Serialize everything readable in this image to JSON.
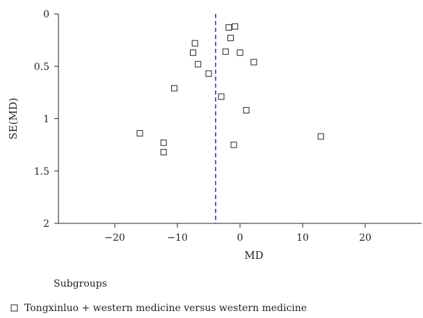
{
  "chart_data": {
    "type": "scatter",
    "title": "",
    "xlabel": "MD",
    "ylabel": "SE(MD)",
    "xlim": [
      -29,
      29
    ],
    "ylim": [
      0,
      2
    ],
    "y_inverted": true,
    "x_ticks": [
      -20,
      -10,
      0,
      10,
      20
    ],
    "x_tick_labels": [
      "−20",
      "−10",
      "0",
      "10",
      "20"
    ],
    "y_ticks": [
      0,
      0.5,
      1,
      1.5,
      2
    ],
    "y_tick_labels": [
      "0",
      "0.5",
      "1",
      "1.5",
      "2"
    ],
    "grid": false,
    "reference_line": {
      "x": -3.9,
      "style": "dashed",
      "color": "#2b3a9b"
    },
    "marker": {
      "shape": "open-square",
      "color": "#222222"
    },
    "points": [
      {
        "x": -1.8,
        "y": 0.13
      },
      {
        "x": -0.8,
        "y": 0.12
      },
      {
        "x": -1.5,
        "y": 0.23
      },
      {
        "x": -7.2,
        "y": 0.28
      },
      {
        "x": -7.5,
        "y": 0.37
      },
      {
        "x": -2.3,
        "y": 0.36
      },
      {
        "x": 0.0,
        "y": 0.37
      },
      {
        "x": 2.2,
        "y": 0.46
      },
      {
        "x": -6.7,
        "y": 0.48
      },
      {
        "x": -5.0,
        "y": 0.57
      },
      {
        "x": -10.5,
        "y": 0.71
      },
      {
        "x": -3.0,
        "y": 0.79
      },
      {
        "x": 1.0,
        "y": 0.92
      },
      {
        "x": -16.0,
        "y": 1.14
      },
      {
        "x": 12.9,
        "y": 1.17
      },
      {
        "x": -12.2,
        "y": 1.23
      },
      {
        "x": -1.0,
        "y": 1.25
      },
      {
        "x": -12.2,
        "y": 1.32
      }
    ],
    "legend": {
      "placement": "bottom",
      "title": "Subgroups",
      "entries": [
        "Tongxinluo + western medicine versus western medicine"
      ]
    }
  }
}
